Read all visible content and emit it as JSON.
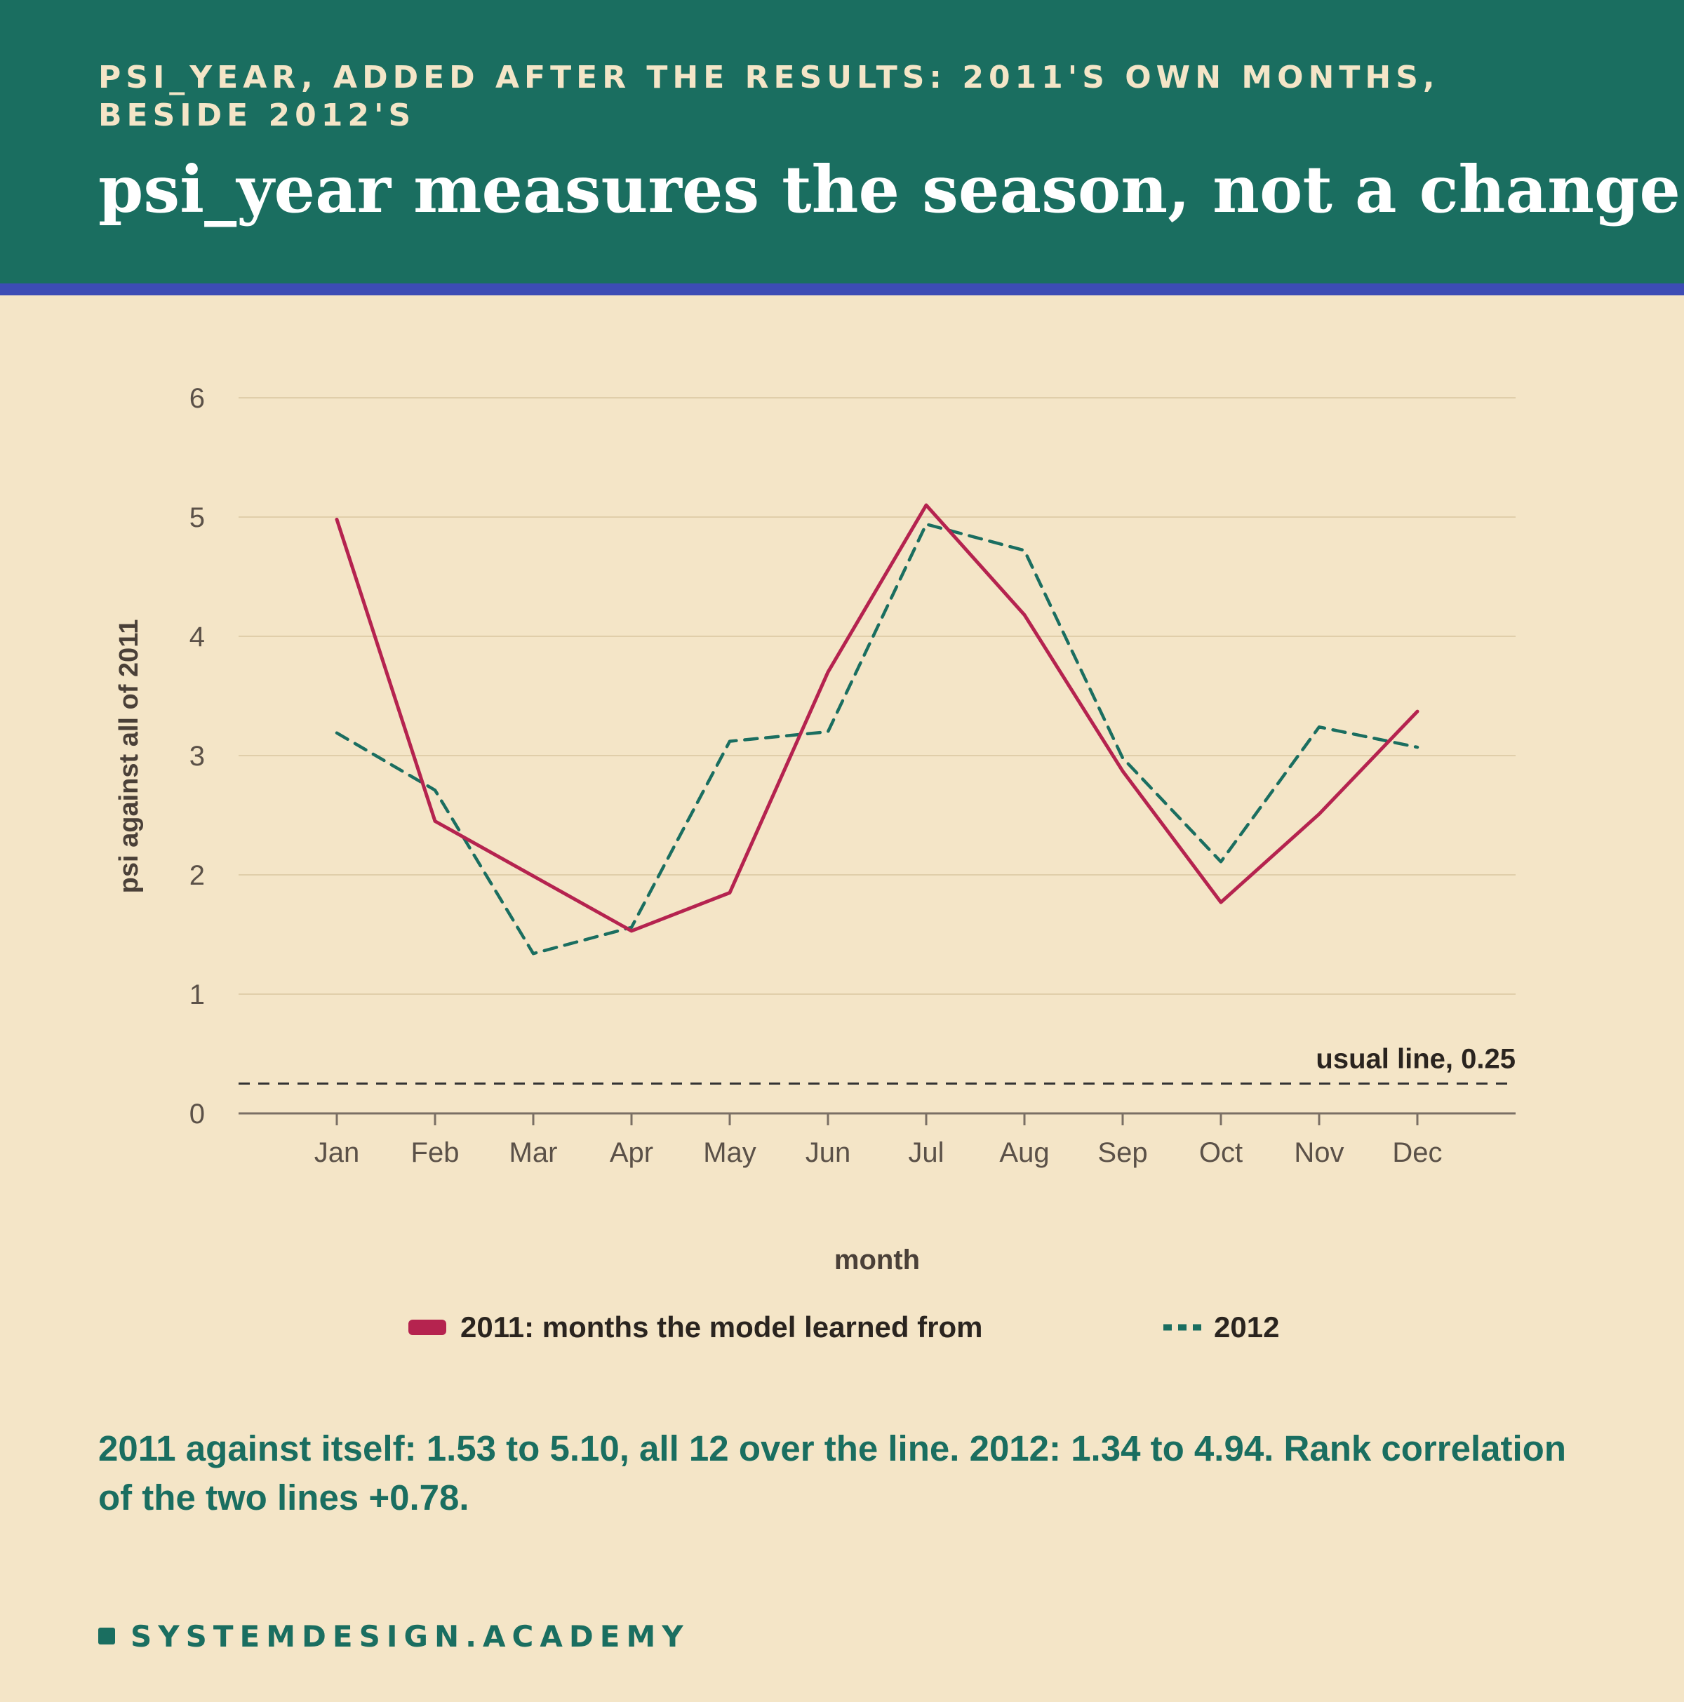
{
  "header": {
    "kicker": "PSI_YEAR, ADDED AFTER THE RESULTS: 2011'S OWN MONTHS, BESIDE 2012'S",
    "title": "psi_year measures the season, not a change"
  },
  "colors": {
    "header_bg": "#1a6e60",
    "header_rule": "#3d4cb5",
    "background": "#f4e5c7",
    "series_2011": "#b5234f",
    "series_2012": "#1a6e60",
    "threshold": "#333333"
  },
  "chart_data": {
    "type": "line",
    "xlabel": "month",
    "ylabel": "psi against all of 2011",
    "categories": [
      "Jan",
      "Feb",
      "Mar",
      "Apr",
      "May",
      "Jun",
      "Jul",
      "Aug",
      "Sep",
      "Oct",
      "Nov",
      "Dec"
    ],
    "ylim": [
      0,
      6
    ],
    "yticks": [
      0,
      1,
      2,
      3,
      4,
      5,
      6
    ],
    "grid": true,
    "legend_position": "bottom",
    "series": [
      {
        "name": "2011: months the model learned from",
        "style": "solid",
        "color": "#b5234f",
        "values": [
          4.98,
          2.45,
          1.99,
          1.53,
          1.85,
          3.7,
          5.1,
          4.18,
          2.87,
          1.77,
          2.51,
          3.37
        ]
      },
      {
        "name": "2012",
        "style": "dashed",
        "color": "#1a6e60",
        "values": [
          3.19,
          2.71,
          1.34,
          1.56,
          3.12,
          3.2,
          4.94,
          4.72,
          2.98,
          2.11,
          3.24,
          3.07
        ]
      }
    ],
    "threshold": {
      "value": 0.25,
      "label": "usual line, 0.25"
    }
  },
  "summary": "2011 against itself: 1.53 to 5.10, all 12 over the line. 2012: 1.34 to 4.94. Rank correlation of the two lines +0.78.",
  "brand": "SYSTEMDESIGN.ACADEMY"
}
